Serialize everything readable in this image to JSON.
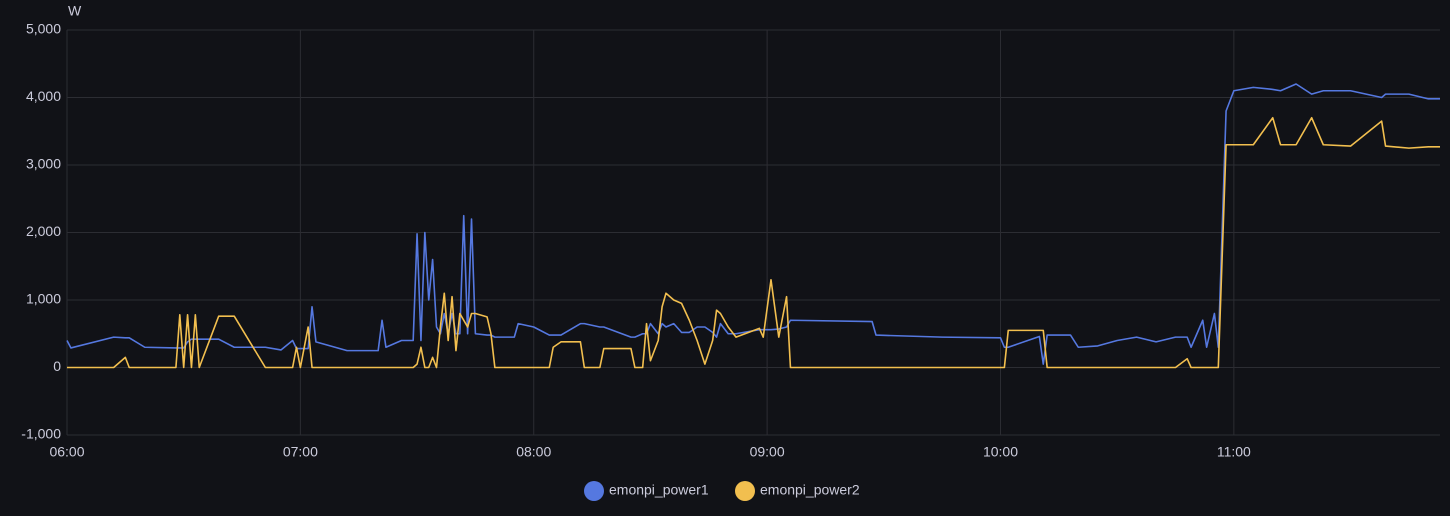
{
  "chart_data": {
    "type": "line",
    "ylabel": "W",
    "x": [
      "06:00",
      "06:01",
      "06:12",
      "06:15",
      "06:16",
      "06:20",
      "06:28",
      "06:29",
      "06:30",
      "06:31",
      "06:32",
      "06:33",
      "06:34",
      "06:39",
      "06:43",
      "06:51",
      "06:55",
      "06:58",
      "06:59",
      "07:00",
      "07:02",
      "07:03",
      "07:04",
      "07:12",
      "07:20",
      "07:21",
      "07:22",
      "07:26",
      "07:29",
      "07:30",
      "07:31",
      "07:32",
      "07:33",
      "07:34",
      "07:35",
      "07:36",
      "07:37",
      "07:38",
      "07:39",
      "07:40",
      "07:41",
      "07:42",
      "07:43",
      "07:44",
      "07:45",
      "07:48",
      "07:49",
      "07:50",
      "07:55",
      "07:56",
      "08:00",
      "08:04",
      "08:05",
      "08:07",
      "08:12",
      "08:13",
      "08:17",
      "08:18",
      "08:25",
      "08:26",
      "08:28",
      "08:29",
      "08:30",
      "08:32",
      "08:33",
      "08:34",
      "08:36",
      "08:38",
      "08:40",
      "08:42",
      "08:44",
      "08:46",
      "08:47",
      "08:48",
      "08:50",
      "08:52",
      "08:58",
      "08:59",
      "09:01",
      "09:03",
      "09:05",
      "09:06",
      "09:27",
      "09:28",
      "09:45",
      "10:00",
      "10:01",
      "10:02",
      "10:10",
      "10:11",
      "10:12",
      "10:18",
      "10:20",
      "10:25",
      "10:30",
      "10:35",
      "10:40",
      "10:45",
      "10:48",
      "10:49",
      "10:52",
      "10:53",
      "10:55",
      "10:56",
      "10:58",
      "11:00",
      "11:05",
      "11:10",
      "11:12",
      "11:16",
      "11:20",
      "11:23",
      "11:30",
      "11:38",
      "11:39",
      "11:45",
      "11:50",
      "11:53"
    ],
    "series": [
      {
        "name": "emonpi_power1",
        "color": "#5578e0",
        "values": [
          400,
          290,
          450,
          440,
          440,
          300,
          290,
          290,
          290,
          380,
          420,
          420,
          420,
          420,
          300,
          300,
          260,
          400,
          280,
          280,
          280,
          900,
          380,
          250,
          250,
          700,
          300,
          400,
          400,
          1980,
          400,
          2000,
          1000,
          1600,
          600,
          500,
          800,
          500,
          800,
          500,
          500,
          2250,
          500,
          2200,
          500,
          480,
          480,
          450,
          450,
          650,
          600,
          480,
          480,
          480,
          650,
          650,
          600,
          600,
          450,
          450,
          500,
          500,
          650,
          500,
          650,
          600,
          650,
          520,
          520,
          600,
          600,
          520,
          450,
          650,
          500,
          500,
          560,
          560,
          560,
          570,
          600,
          700,
          680,
          480,
          450,
          440,
          300,
          300,
          460,
          50,
          480,
          480,
          300,
          320,
          400,
          450,
          380,
          450,
          450,
          300,
          700,
          300,
          800,
          300,
          3800,
          4100,
          4150,
          4120,
          4100,
          4200,
          4050,
          4100,
          4100,
          4000,
          4050,
          4050,
          3980,
          3980
        ]
      },
      {
        "name": "emonpi_power2",
        "color": "#f2bf4f",
        "values": [
          0,
          0,
          0,
          150,
          0,
          0,
          0,
          780,
          0,
          780,
          0,
          780,
          0,
          760,
          760,
          0,
          0,
          0,
          300,
          0,
          600,
          0,
          0,
          0,
          0,
          0,
          0,
          0,
          0,
          50,
          300,
          0,
          0,
          150,
          0,
          600,
          1100,
          400,
          1050,
          250,
          800,
          700,
          600,
          800,
          800,
          750,
          500,
          0,
          0,
          0,
          0,
          0,
          300,
          380,
          380,
          0,
          0,
          280,
          280,
          0,
          0,
          650,
          100,
          400,
          900,
          1100,
          1000,
          950,
          700,
          400,
          50,
          400,
          850,
          800,
          600,
          450,
          580,
          450,
          1300,
          450,
          1050,
          0,
          0,
          0,
          0,
          0,
          0,
          550,
          550,
          550,
          0,
          0,
          0,
          0,
          0,
          0,
          0,
          0,
          130,
          0,
          0,
          0,
          0,
          0,
          3300,
          3300,
          3300,
          3700,
          3300,
          3300,
          3700,
          3300,
          3280,
          3650,
          3280,
          3250,
          3270,
          3270
        ]
      }
    ],
    "xlim": [
      "06:00",
      "11:53"
    ],
    "xticks": [
      "06:00",
      "07:00",
      "08:00",
      "09:00",
      "10:00",
      "11:00"
    ],
    "ylim": [
      -1000,
      5000
    ],
    "yticks": [
      {
        "value": -1000,
        "label": "-1,000"
      },
      0,
      {
        "value": 1000,
        "label": "1,000"
      },
      {
        "value": 2000,
        "label": "2,000"
      },
      {
        "value": 3000,
        "label": "3,000"
      },
      {
        "value": 4000,
        "label": "4,000"
      },
      {
        "value": 5000,
        "label": "5,000"
      }
    ],
    "grid": true,
    "legend": "bottom"
  }
}
